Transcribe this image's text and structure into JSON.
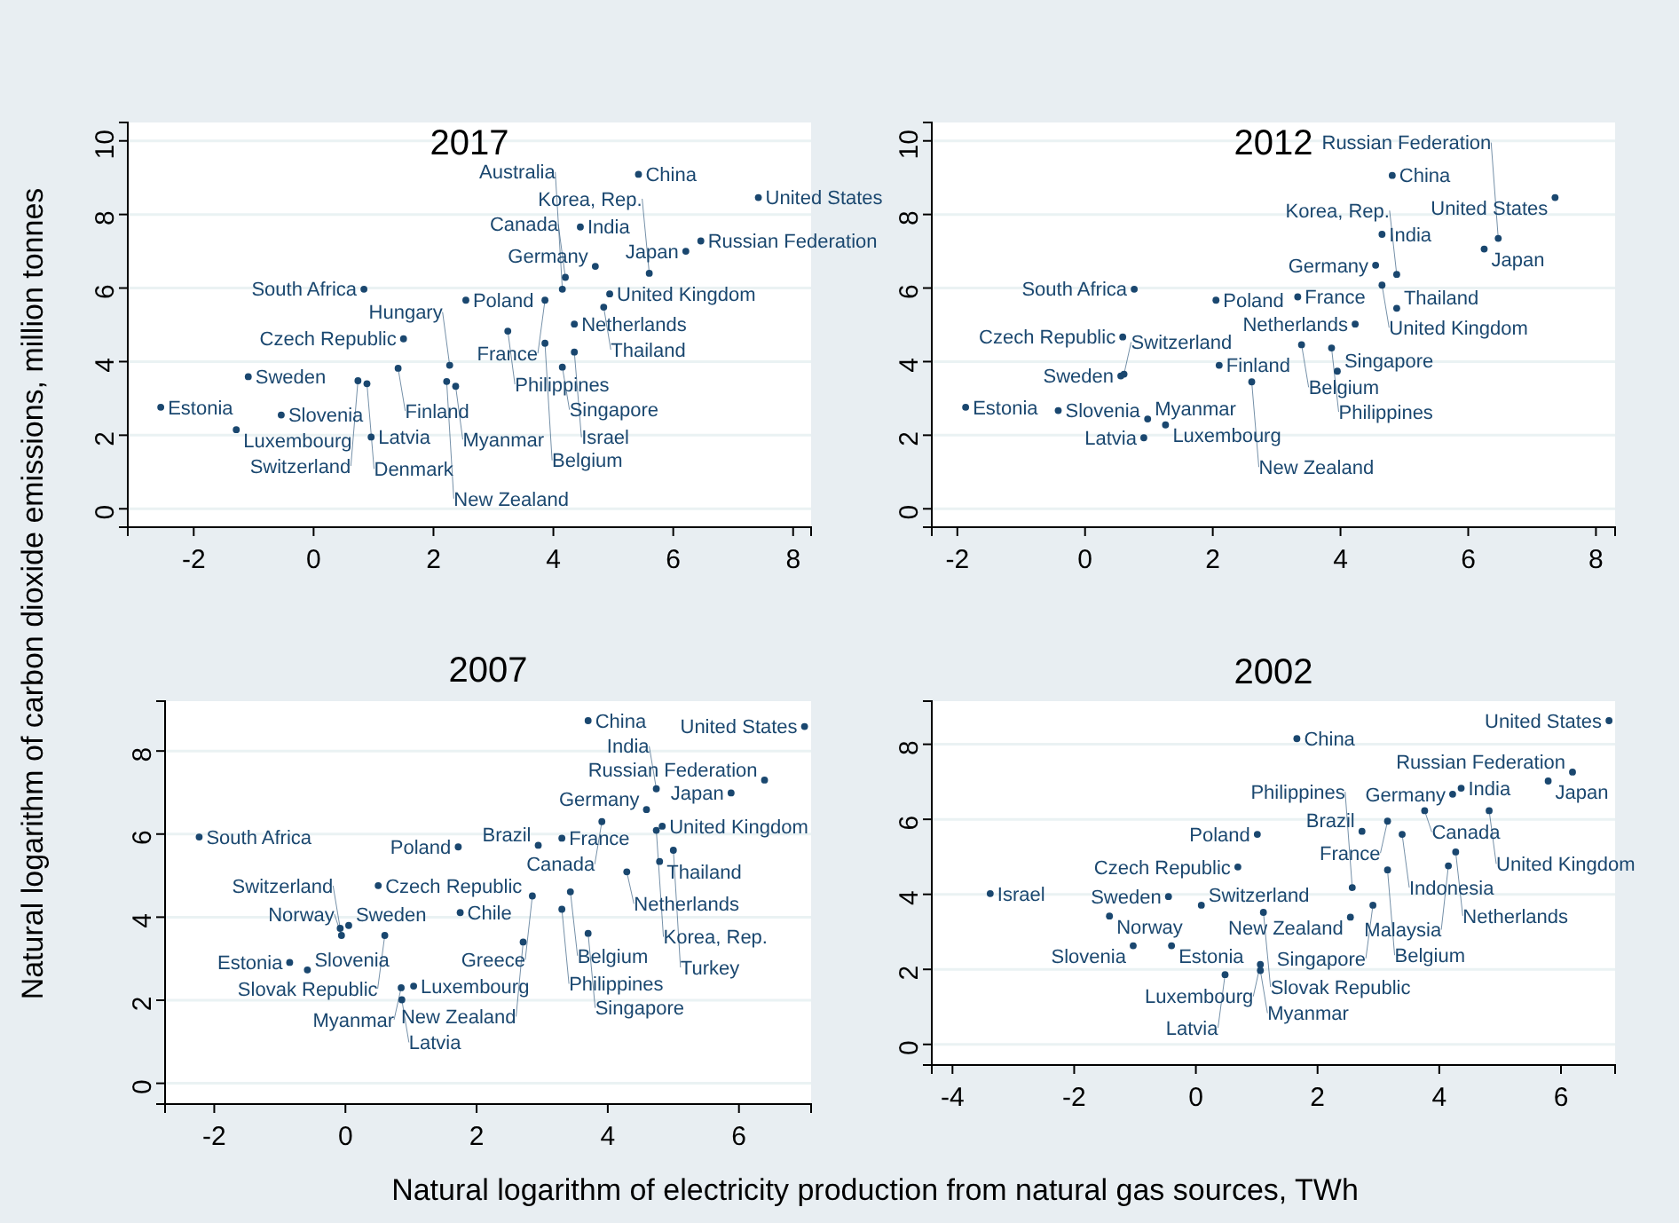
{
  "chart_data": [
    {
      "type": "scatter",
      "title": "2017",
      "ylabel": "Natural logarithm of carbon dioxide emissions, million tonnes",
      "marker": "circle",
      "grid": "y",
      "xlim": [
        -3.1,
        8.3
      ],
      "ylim": [
        -0.5,
        10.5
      ],
      "xticks": [
        -2,
        0,
        2,
        4,
        6,
        8
      ],
      "yticks": [
        0,
        2,
        4,
        6,
        8,
        10
      ],
      "color": "#1a476f",
      "x": [
        5.42,
        7.42,
        4.45,
        6.46,
        6.21,
        4.7,
        4.94,
        0.84,
        2.54,
        3.86,
        4.35,
        4.84,
        3.24,
        1.5,
        4.15,
        -1.09,
        -2.55,
        -0.54,
        -1.29,
        0.96,
        1.41,
        2.37,
        2.27,
        4.35,
        5.6,
        0.89,
        0.74,
        2.22,
        4.2,
        4.15,
        3.86
      ],
      "values": [
        9.09,
        8.46,
        7.66,
        7.28,
        7.0,
        6.59,
        5.84,
        5.97,
        5.67,
        5.67,
        5.02,
        5.48,
        4.83,
        4.62,
        3.85,
        3.59,
        2.76,
        2.55,
        2.15,
        1.95,
        3.82,
        3.33,
        3.9,
        4.26,
        6.4,
        3.4,
        3.48,
        3.46,
        6.29,
        5.97,
        4.5
      ],
      "value_labels": [
        "China",
        "United States",
        "India",
        "Russian Federation",
        "Japan",
        "Germany",
        "United Kingdom",
        "South Africa",
        "Poland",
        "France",
        "Netherlands",
        "Thailand",
        "Philippines",
        "Czech Republic",
        "Singapore",
        "Sweden",
        "Estonia",
        "Slovenia",
        "Luxembourg",
        "Latvia",
        "Finland",
        "Myanmar",
        "Hungary",
        "Israel",
        "Korea, Rep.",
        "Denmark",
        "Switzerland",
        "New Zealand",
        "Canada",
        "Australia",
        "Belgium"
      ]
    },
    {
      "type": "scatter",
      "title": "2012",
      "marker": "circle",
      "grid": "y",
      "xlim": [
        -2.4,
        8.3
      ],
      "ylim": [
        -0.5,
        10.5
      ],
      "xticks": [
        -2,
        0,
        2,
        4,
        6,
        8
      ],
      "yticks": [
        0,
        2,
        4,
        6,
        8,
        10
      ],
      "color": "#1a476f",
      "x": [
        4.81,
        7.36,
        4.65,
        6.47,
        6.25,
        4.55,
        4.65,
        0.77,
        2.05,
        3.33,
        4.88,
        4.23,
        0.59,
        3.39,
        3.86,
        3.95,
        0.56,
        2.1,
        -1.87,
        -0.42,
        0.98,
        1.26,
        0.92,
        2.61,
        4.88,
        0.61
      ],
      "values": [
        9.06,
        8.46,
        7.46,
        7.35,
        7.06,
        6.62,
        6.08,
        5.97,
        5.67,
        5.76,
        5.45,
        5.02,
        4.67,
        4.46,
        4.37,
        3.74,
        3.61,
        3.9,
        2.76,
        2.67,
        2.44,
        2.28,
        1.93,
        3.45,
        6.37,
        3.66
      ],
      "value_labels": [
        "China",
        "United States",
        "India",
        "Russian Federation",
        "Japan",
        "Germany",
        "United Kingdom",
        "South Africa",
        "Poland",
        "France",
        "Thailand",
        "Netherlands",
        "Czech Republic",
        "Belgium",
        "Philippines",
        "Singapore",
        "Sweden",
        "Finland",
        "Estonia",
        "Slovenia",
        "Myanmar",
        "Luxembourg",
        "Latvia",
        "New Zealand",
        "Korea, Rep.",
        "Switzerland"
      ]
    },
    {
      "type": "scatter",
      "title": "2007",
      "xlabel": "Natural logarithm of electricity production from natural gas sources, TWh",
      "marker": "circle",
      "grid": "y",
      "xlim": [
        -2.75,
        7.1
      ],
      "ylim": [
        -0.5,
        9.2
      ],
      "xticks": [
        -2,
        0,
        2,
        4,
        6
      ],
      "yticks": [
        0,
        2,
        4,
        6,
        8
      ],
      "color": "#1a476f",
      "x": [
        3.7,
        7.0,
        6.39,
        5.88,
        4.74,
        4.59,
        3.91,
        4.83,
        -2.23,
        1.72,
        2.94,
        3.3,
        4.79,
        4.29,
        0.5,
        3.43,
        2.85,
        3.3,
        1.75,
        3.7,
        2.71,
        0.05,
        0.6,
        -0.85,
        -0.58,
        0.85,
        1.04,
        0.86,
        4.74,
        5.0,
        -0.06,
        -0.08
      ],
      "values": [
        8.73,
        8.59,
        7.3,
        6.99,
        7.09,
        6.59,
        6.3,
        6.19,
        5.93,
        5.69,
        5.73,
        5.9,
        5.34,
        5.09,
        4.76,
        4.61,
        4.51,
        4.19,
        4.11,
        3.61,
        3.4,
        3.8,
        3.56,
        2.91,
        2.73,
        2.3,
        2.34,
        2.01,
        6.09,
        5.61,
        3.56,
        3.73
      ],
      "value_labels": [
        "China",
        "United States",
        "Russian Federation",
        "Japan",
        "India",
        "Germany",
        "Canada",
        "United Kingdom",
        "South Africa",
        "Poland",
        "Brazil",
        "France",
        "Thailand",
        "Netherlands",
        "Czech Republic",
        "Belgium",
        "Greece",
        "Philippines",
        "Chile",
        "Singapore",
        "New Zealand",
        "Sweden",
        "Slovak Republic",
        "Estonia",
        "Slovenia",
        "Myanmar",
        "Luxembourg",
        "Latvia",
        "Korea, Rep.",
        "Turkey",
        "Norway",
        "Switzerland"
      ]
    },
    {
      "type": "scatter",
      "title": "2002",
      "marker": "circle",
      "grid": "y",
      "xlim": [
        -4.34,
        6.89
      ],
      "ylim": [
        -0.55,
        9.15
      ],
      "xticks": [
        -4,
        -2,
        0,
        2,
        4,
        6
      ],
      "yticks": [
        0,
        2,
        4,
        6,
        8
      ],
      "color": "#1a476f",
      "x": [
        6.79,
        1.66,
        6.19,
        5.79,
        4.36,
        4.22,
        3.76,
        4.82,
        3.15,
        2.73,
        1.01,
        3.39,
        4.27,
        4.15,
        0.69,
        3.15,
        -3.38,
        -0.45,
        0.09,
        -1.42,
        1.11,
        2.91,
        2.54,
        2.57,
        -1.03,
        -0.4,
        1.06,
        1.06,
        0.48
      ],
      "values": [
        8.63,
        8.15,
        7.26,
        7.02,
        6.83,
        6.67,
        6.23,
        6.23,
        5.95,
        5.68,
        5.6,
        5.6,
        5.13,
        4.76,
        4.73,
        4.65,
        4.02,
        3.94,
        3.71,
        3.42,
        3.52,
        3.71,
        3.39,
        4.18,
        2.63,
        2.63,
        2.13,
        1.97,
        1.86
      ],
      "value_labels": [
        "United States",
        "China",
        "Russian Federation",
        "Japan",
        "India",
        "Germany",
        "Canada",
        "United Kingdom",
        "France",
        "Brazil",
        "Poland",
        "Indonesia",
        "Netherlands",
        "Malaysia",
        "Czech Republic",
        "Belgium",
        "Israel",
        "Sweden",
        "Switzerland",
        "Norway",
        "Slovak Republic",
        "Singapore",
        "New Zealand",
        "Philippines",
        "Slovenia",
        "Estonia",
        "Luxembourg",
        "Myanmar",
        "Latvia"
      ]
    }
  ]
}
